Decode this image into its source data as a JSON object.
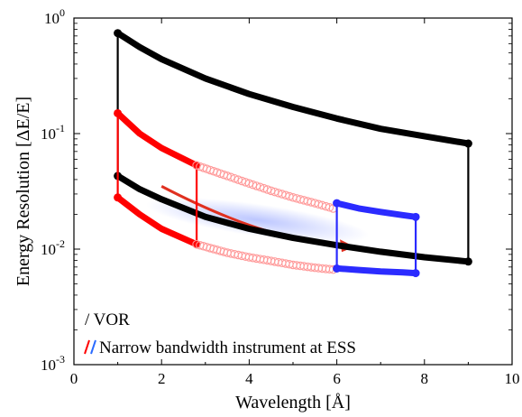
{
  "chart_data": {
    "type": "line",
    "title": "",
    "xlabel": "Wavelength [Å]",
    "ylabel": "Energy Resolution [ΔE/E]",
    "xlim": [
      0,
      10
    ],
    "ylim": [
      0.001,
      1
    ],
    "yscale": "log",
    "x_ticks": [
      "0",
      "2",
      "4",
      "6",
      "8",
      "10"
    ],
    "y_ticks": [
      {
        "base": "10",
        "exp": "0",
        "value": 1
      },
      {
        "base": "10",
        "exp": "-1",
        "value": 0.1
      },
      {
        "base": "10",
        "exp": "-2",
        "value": 0.01
      },
      {
        "base": "10",
        "exp": "-3",
        "value": 0.001
      }
    ],
    "legend": [
      {
        "label": "/ VOR",
        "colors": [
          "#000000"
        ]
      },
      {
        "label": "Narrow bandwidth instrument at ESS",
        "colors": [
          "#ff0000",
          "#2b6bff"
        ]
      }
    ],
    "series": [
      {
        "color": "#000000",
        "style": "thick",
        "x": [
          1,
          1.5,
          2,
          3,
          4,
          5,
          6,
          7,
          8,
          9
        ],
        "y": [
          0.74,
          0.56,
          0.44,
          0.3,
          0.22,
          0.17,
          0.135,
          0.11,
          0.095,
          0.082
        ]
      },
      {
        "color": "#000000",
        "style": "thick",
        "x": [
          1,
          1.5,
          2,
          3,
          4,
          5,
          6,
          7,
          8,
          9
        ],
        "y": [
          0.043,
          0.033,
          0.027,
          0.019,
          0.015,
          0.0125,
          0.0108,
          0.0095,
          0.0085,
          0.0078
        ]
      },
      {
        "color": "#000000",
        "style": "thin",
        "x": [
          1,
          1
        ],
        "y": [
          0.74,
          0.043
        ]
      },
      {
        "color": "#000000",
        "style": "thin",
        "x": [
          9,
          9
        ],
        "y": [
          0.082,
          0.0078
        ]
      },
      {
        "color": "#ff0000",
        "style": "thick",
        "x": [
          1,
          1.5,
          2,
          2.8
        ],
        "y": [
          0.15,
          0.1,
          0.075,
          0.053
        ]
      },
      {
        "color": "#ff0000",
        "style": "thick",
        "x": [
          1,
          1.5,
          2,
          2.8
        ],
        "y": [
          0.028,
          0.02,
          0.015,
          0.011
        ]
      },
      {
        "color": "#ff0000",
        "style": "thin",
        "x": [
          1,
          1
        ],
        "y": [
          0.15,
          0.028
        ]
      },
      {
        "color": "#ff0000",
        "style": "thin",
        "x": [
          2.8,
          2.8
        ],
        "y": [
          0.053,
          0.011
        ]
      },
      {
        "color": "#ff9999",
        "style": "circles",
        "x": [
          2.8,
          3.5,
          4,
          4.5,
          5,
          5.5,
          6
        ],
        "y": [
          0.053,
          0.043,
          0.037,
          0.032,
          0.028,
          0.025,
          0.022
        ]
      },
      {
        "color": "#ff9999",
        "style": "circles",
        "x": [
          2.8,
          3.5,
          4,
          4.5,
          5,
          5.5,
          6
        ],
        "y": [
          0.011,
          0.0093,
          0.0085,
          0.0079,
          0.0073,
          0.0069,
          0.0066
        ]
      },
      {
        "color": "#2b2bff",
        "style": "thick",
        "x": [
          6,
          6.5,
          7,
          7.5,
          7.8
        ],
        "y": [
          0.025,
          0.0225,
          0.021,
          0.0197,
          0.019
        ]
      },
      {
        "color": "#2b2bff",
        "style": "thick",
        "x": [
          6,
          6.5,
          7,
          7.5,
          7.8
        ],
        "y": [
          0.0068,
          0.0066,
          0.0064,
          0.0063,
          0.0062
        ]
      },
      {
        "color": "#2b2bff",
        "style": "thin",
        "x": [
          6,
          6
        ],
        "y": [
          0.025,
          0.0068
        ]
      },
      {
        "color": "#2b2bff",
        "style": "thin",
        "x": [
          7.8,
          7.8
        ],
        "y": [
          0.019,
          0.0062
        ]
      }
    ],
    "annotation_arrow": {
      "color": "#e03020",
      "from": [
        2,
        0.035
      ],
      "to": [
        6.4,
        0.0105
      ]
    },
    "grid": false
  }
}
